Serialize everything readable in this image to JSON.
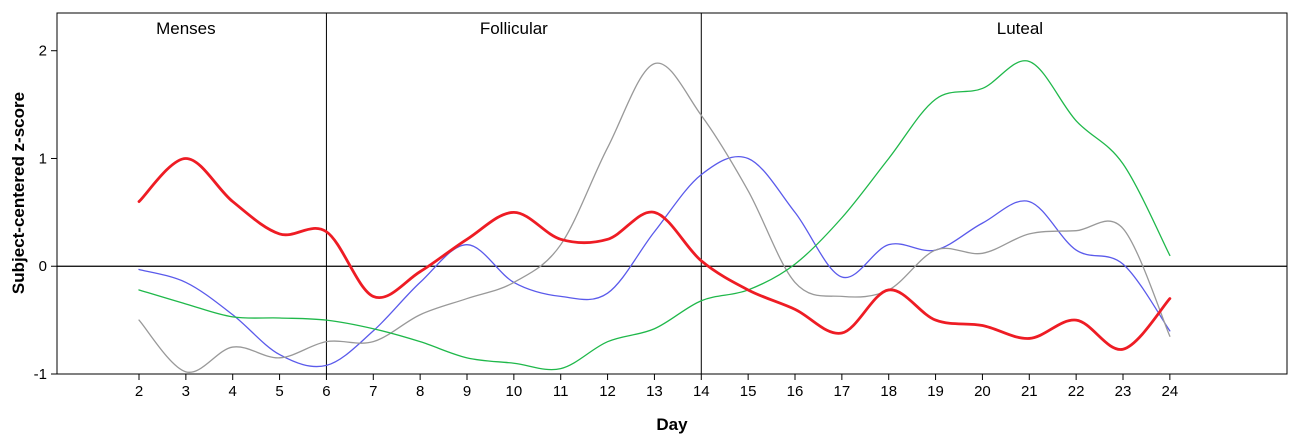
{
  "chart_data": {
    "type": "line",
    "title": "",
    "xlabel": "Day",
    "ylabel": "Subject-centered z-score",
    "xlim": [
      0.25,
      26.5
    ],
    "ylim": [
      -1,
      2.35
    ],
    "x_ticks": [
      2,
      3,
      4,
      5,
      6,
      7,
      8,
      9,
      10,
      11,
      12,
      13,
      14,
      15,
      16,
      17,
      18,
      19,
      20,
      21,
      22,
      23,
      24
    ],
    "y_ticks": [
      -1,
      0,
      1,
      2
    ],
    "reference_line_y": 0,
    "phase_boundaries": [
      6,
      14
    ],
    "phases": [
      {
        "label": "Menses",
        "x": 3
      },
      {
        "label": "Follicular",
        "x": 10
      },
      {
        "label": "Luteal",
        "x": 20.8
      }
    ],
    "grid": false,
    "legend": "none",
    "series": [
      {
        "color": "#ee1c24",
        "stroke_width": 2.8,
        "x": [
          2,
          3,
          4,
          5,
          6,
          7,
          8,
          9,
          10,
          11,
          12,
          13,
          14,
          15,
          16,
          17,
          18,
          19,
          20,
          21,
          22,
          23,
          24
        ],
        "values": [
          0.6,
          1.0,
          0.6,
          0.3,
          0.32,
          -0.28,
          -0.05,
          0.25,
          0.5,
          0.25,
          0.25,
          0.5,
          0.05,
          -0.22,
          -0.4,
          -0.62,
          -0.22,
          -0.5,
          -0.55,
          -0.67,
          -0.5,
          -0.77,
          -0.3
        ]
      },
      {
        "color": "#5a5aeb",
        "stroke_width": 1.3,
        "x": [
          2,
          3,
          4,
          5,
          6,
          7,
          8,
          9,
          10,
          11,
          12,
          13,
          14,
          15,
          16,
          17,
          18,
          19,
          20,
          21,
          22,
          23,
          24
        ],
        "values": [
          -0.03,
          -0.15,
          -0.45,
          -0.82,
          -0.92,
          -0.6,
          -0.15,
          0.2,
          -0.15,
          -0.28,
          -0.25,
          0.32,
          0.85,
          1.0,
          0.5,
          -0.1,
          0.2,
          0.15,
          0.4,
          0.6,
          0.15,
          0.02,
          -0.6
        ]
      },
      {
        "color": "#999999",
        "stroke_width": 1.3,
        "x": [
          2,
          3,
          4,
          5,
          6,
          7,
          8,
          9,
          10,
          11,
          12,
          13,
          14,
          15,
          16,
          17,
          18,
          19,
          20,
          21,
          22,
          23,
          24
        ],
        "values": [
          -0.5,
          -0.98,
          -0.75,
          -0.85,
          -0.7,
          -0.7,
          -0.45,
          -0.3,
          -0.15,
          0.2,
          1.1,
          1.88,
          1.4,
          0.7,
          -0.15,
          -0.28,
          -0.22,
          0.15,
          0.12,
          0.3,
          0.33,
          0.35,
          -0.65
        ]
      },
      {
        "color": "#1fb84a",
        "stroke_width": 1.3,
        "x": [
          2,
          3,
          4,
          5,
          6,
          7,
          8,
          9,
          10,
          11,
          12,
          13,
          14,
          15,
          16,
          17,
          18,
          19,
          20,
          21,
          22,
          23,
          24
        ],
        "values": [
          -0.22,
          -0.35,
          -0.47,
          -0.48,
          -0.5,
          -0.58,
          -0.7,
          -0.85,
          -0.9,
          -0.95,
          -0.7,
          -0.58,
          -0.32,
          -0.22,
          0.02,
          0.45,
          1.0,
          1.55,
          1.65,
          1.9,
          1.35,
          0.95,
          0.1
        ]
      }
    ]
  }
}
